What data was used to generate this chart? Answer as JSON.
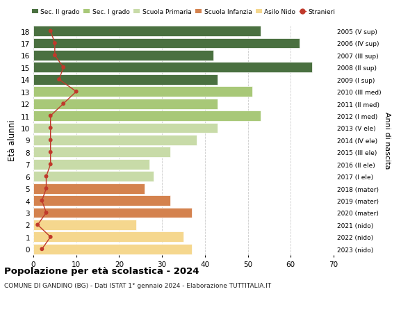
{
  "ages": [
    0,
    1,
    2,
    3,
    4,
    5,
    6,
    7,
    8,
    9,
    10,
    11,
    12,
    13,
    14,
    15,
    16,
    17,
    18
  ],
  "years": [
    "2023 (nido)",
    "2022 (nido)",
    "2021 (nido)",
    "2020 (mater)",
    "2019 (mater)",
    "2018 (mater)",
    "2017 (I ele)",
    "2016 (II ele)",
    "2015 (III ele)",
    "2014 (IV ele)",
    "2013 (V ele)",
    "2012 (I med)",
    "2011 (II med)",
    "2010 (III med)",
    "2009 (I sup)",
    "2008 (II sup)",
    "2007 (III sup)",
    "2006 (IV sup)",
    "2005 (V sup)"
  ],
  "bar_values": [
    37,
    35,
    24,
    37,
    32,
    26,
    28,
    27,
    32,
    38,
    43,
    53,
    43,
    51,
    43,
    65,
    42,
    62,
    53
  ],
  "stranieri": [
    2,
    4,
    1,
    3,
    2,
    3,
    3,
    4,
    4,
    4,
    4,
    4,
    7,
    10,
    6,
    7,
    5,
    5,
    4
  ],
  "bar_colors": [
    "#f5d78e",
    "#f5d78e",
    "#f5d78e",
    "#d4824e",
    "#d4824e",
    "#d4824e",
    "#c8dba8",
    "#c8dba8",
    "#c8dba8",
    "#c8dba8",
    "#c8dba8",
    "#a8c878",
    "#a8c878",
    "#a8c878",
    "#4a7040",
    "#4a7040",
    "#4a7040",
    "#4a7040",
    "#4a7040"
  ],
  "legend_colors": [
    "#4a7040",
    "#a8c878",
    "#c8dba8",
    "#d4824e",
    "#f5d78e",
    "#c0392b"
  ],
  "legend_labels": [
    "Sec. II grado",
    "Sec. I grado",
    "Scuola Primaria",
    "Scuola Infanzia",
    "Asilo Nido",
    "Stranieri"
  ],
  "title": "Popolazione per età scolastica - 2024",
  "subtitle": "COMUNE DI GANDINO (BG) - Dati ISTAT 1° gennaio 2024 - Elaborazione TUTTITALIA.IT",
  "ylabel": "Età alunni",
  "right_ylabel": "Anni di nascita",
  "xlim": [
    0,
    70
  ],
  "background_color": "#ffffff",
  "grid_color": "#cccccc",
  "stranieri_color": "#c0392b"
}
